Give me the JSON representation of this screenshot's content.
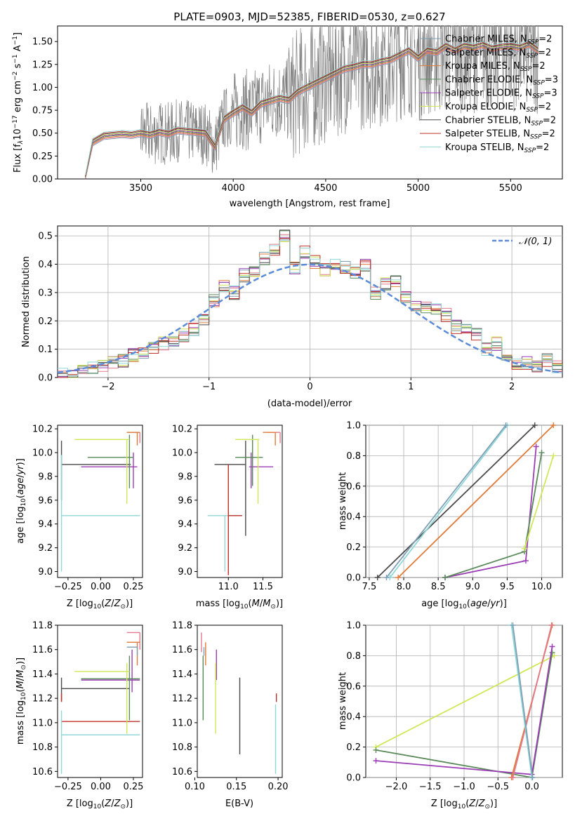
{
  "title": "PLATE=0903, MJD=52385, FIBERID=0530, z=0.627",
  "colors": {
    "chabrier_miles": "#7f9fb5",
    "salpeter_miles": "#e07b8d",
    "kroupa_miles": "#e07b39",
    "chabrier_elodie": "#5a8a5a",
    "salpeter_elodie": "#9b3db5",
    "kroupa_elodie": "#cfe85a",
    "chabrier_stelib": "#4a4a4a",
    "salpeter_stelib": "#c0302a",
    "kroupa_stelib": "#8fd6d6",
    "normal_curve": "#5b8bd9",
    "grid": "#b0b0b0",
    "data": "#808080"
  },
  "legend_labels": {
    "spectrum": [
      "Chabrier MILES, N",
      "Salpeter MILES, N",
      "Kroupa MILES, N",
      "Chabrier ELODIE, N",
      "Salpeter ELODIE, N",
      "Kroupa ELODIE, N",
      "Chabrier STELIB, N",
      "Salpeter STELIB, N",
      "Kroupa STELIB, N"
    ],
    "nssp_values": [
      "=2",
      "=2",
      "=2",
      "=3",
      "=3",
      "=2",
      "=2",
      "=2",
      "=2"
    ],
    "normal": "𝒩(0, 1)"
  },
  "axis_labels": {
    "spec_x": "wavelength [Angstrom, rest frame]",
    "spec_y": "Flux [f",
    "hist_x": "(data-model)/error",
    "hist_y": "Normed distribution",
    "age_y": "age  [log",
    "Z_x": "Z [log",
    "mass_x": "mass [log",
    "mw_y": "mass weight",
    "age_x": "age  [log",
    "mass_y": "mass [log",
    "ebv_x": "E(B-V)"
  },
  "chart_data": [
    {
      "type": "line",
      "title": "PLATE=0903, MJD=52385, FIBERID=0530, z=0.627",
      "xlabel": "wavelength [Angstrom, rest frame]",
      "ylabel": "Flux [f_λ 10^-17 erg cm^-2 s^-1 A^-1]",
      "xlim": [
        3050,
        5780
      ],
      "ylim": [
        0,
        1.67
      ],
      "xticks": [
        3500,
        4000,
        4500,
        5000,
        5500
      ],
      "yticks": [
        0.0,
        0.25,
        0.5,
        0.75,
        1.0,
        1.25,
        1.5
      ],
      "model_continuum": {
        "x": [
          3200,
          3240,
          3300,
          3350,
          3400,
          3450,
          3500,
          3550,
          3600,
          3650,
          3700,
          3750,
          3800,
          3850,
          3900,
          3950,
          4000,
          4050,
          4100,
          4150,
          4200,
          4250,
          4300,
          4350,
          4400,
          4450,
          4500,
          4550,
          4600,
          4650,
          4700,
          4750,
          4800,
          4850,
          4900,
          4950,
          5000,
          5050,
          5100,
          5150,
          5200,
          5250,
          5300,
          5350,
          5400,
          5450,
          5500,
          5550,
          5600,
          5650
        ],
        "y": [
          0.0,
          0.4,
          0.47,
          0.48,
          0.49,
          0.48,
          0.5,
          0.48,
          0.51,
          0.49,
          0.53,
          0.52,
          0.51,
          0.5,
          0.35,
          0.65,
          0.72,
          0.78,
          0.72,
          0.82,
          0.85,
          0.88,
          0.86,
          0.95,
          1.0,
          1.05,
          1.1,
          1.15,
          1.2,
          1.22,
          1.25,
          1.25,
          1.28,
          1.3,
          1.35,
          1.4,
          1.32,
          1.4,
          1.38,
          1.45,
          1.4,
          1.45,
          1.43,
          1.46,
          1.42,
          1.44,
          1.45,
          1.43,
          1.47,
          1.4
        ]
      },
      "legend_position": "top-right"
    },
    {
      "type": "line",
      "xlabel": "(data-model)/error",
      "ylabel": "Normed distribution",
      "xlim": [
        -2.5,
        2.5
      ],
      "ylim": [
        0,
        0.535
      ],
      "xticks": [
        -2,
        -1,
        0,
        1,
        2
      ],
      "yticks": [
        0.0,
        0.1,
        0.2,
        0.3,
        0.4,
        0.5
      ],
      "grid": true,
      "histogram_bins": {
        "x": [
          -2.5,
          -2.4,
          -2.3,
          -2.2,
          -2.1,
          -2.0,
          -1.9,
          -1.8,
          -1.7,
          -1.6,
          -1.5,
          -1.4,
          -1.3,
          -1.2,
          -1.1,
          -1.0,
          -0.9,
          -0.8,
          -0.7,
          -0.6,
          -0.5,
          -0.4,
          -0.3,
          -0.2,
          -0.1,
          0.0,
          0.1,
          0.2,
          0.3,
          0.4,
          0.5,
          0.6,
          0.7,
          0.8,
          0.9,
          1.0,
          1.1,
          1.2,
          1.3,
          1.4,
          1.5,
          1.6,
          1.7,
          1.8,
          1.9,
          2.0,
          2.1,
          2.2,
          2.3,
          2.4
        ],
        "y": [
          0.01,
          0.01,
          0.02,
          0.03,
          0.04,
          0.05,
          0.06,
          0.08,
          0.09,
          0.1,
          0.12,
          0.13,
          0.15,
          0.17,
          0.2,
          0.27,
          0.32,
          0.3,
          0.36,
          0.38,
          0.42,
          0.45,
          0.5,
          0.39,
          0.44,
          0.41,
          0.38,
          0.4,
          0.39,
          0.37,
          0.4,
          0.3,
          0.33,
          0.34,
          0.28,
          0.26,
          0.25,
          0.24,
          0.22,
          0.18,
          0.17,
          0.15,
          0.1,
          0.12,
          0.08,
          0.05,
          0.05,
          0.04,
          0.06,
          0.04
        ]
      },
      "series": [
        {
          "name": "𝒩(0, 1)",
          "mean": 0,
          "sigma": 1
        }
      ],
      "legend_position": "top-right"
    },
    {
      "type": "scatter",
      "xlabel": "Z [log10(Z/Z☉)]",
      "ylabel": "age [log10(age/yr)]",
      "xlim": [
        -0.33,
        0.32
      ],
      "ylim": [
        8.95,
        10.23
      ],
      "xticks": [
        -0.25,
        0.0,
        0.25
      ],
      "yticks": [
        9.0,
        9.2,
        9.4,
        9.6,
        9.8,
        10.0,
        10.2
      ],
      "points": [
        {
          "color": "chabrier_stelib",
          "x": [
            -0.3,
            0.23
          ],
          "y": [
            9.9,
            9.9
          ],
          "vx": -0.3,
          "vy": [
            9.6,
            10.1
          ]
        },
        {
          "color": "kroupa_stelib",
          "x": [
            -0.3,
            0.3
          ],
          "y": [
            9.47,
            9.47
          ],
          "vx": -0.3,
          "vy": [
            9.0,
            9.98
          ]
        },
        {
          "color": "salpeter_elodie",
          "x": [
            -0.15,
            0.28
          ],
          "y": [
            9.88,
            9.88
          ],
          "vx": 0.25,
          "vy": [
            9.7,
            10.0
          ]
        },
        {
          "color": "chabrier_elodie",
          "x": [
            -0.1,
            0.25
          ],
          "y": [
            9.96,
            9.96
          ],
          "vx": 0.22,
          "vy": [
            9.7,
            10.15
          ]
        },
        {
          "color": "kroupa_elodie",
          "x": [
            -0.2,
            0.22
          ],
          "y": [
            10.11,
            10.11
          ],
          "vx": 0.2,
          "vy": [
            9.57,
            10.11
          ]
        },
        {
          "color": "salpeter_miles",
          "x": [
            0.2,
            0.3
          ],
          "y": [
            10.17,
            10.17
          ],
          "vx": 0.3,
          "vy": [
            10.08,
            10.17
          ]
        },
        {
          "color": "kroupa_miles",
          "x": [
            0.2,
            0.3
          ],
          "y": [
            10.17,
            10.17
          ],
          "vx": 0.28,
          "vy": [
            10.06,
            10.17
          ]
        }
      ]
    },
    {
      "type": "scatter",
      "xlabel": "mass [log10(M/M☉)]",
      "xlim": [
        10.55,
        11.78
      ],
      "ylim": [
        8.95,
        10.23
      ],
      "xticks": [
        11.0,
        11.5
      ],
      "yticks": [
        9.0,
        9.2,
        9.4,
        9.6,
        9.8,
        10.0,
        10.2
      ],
      "points": [
        {
          "color": "chabrier_stelib",
          "x": [
            10.8,
            11.25
          ],
          "y": [
            9.9,
            9.9
          ],
          "vx": 11.25,
          "vy": [
            9.3,
            10.1
          ]
        },
        {
          "color": "kroupa_stelib",
          "x": [
            10.7,
            11.2
          ],
          "y": [
            9.47,
            9.47
          ],
          "vx": 10.95,
          "vy": [
            9.0,
            9.47
          ]
        },
        {
          "color": "salpeter_stelib",
          "x": [
            11.0,
            11.2
          ],
          "y": [
            9.47,
            9.47
          ],
          "vx": 11.0,
          "vy": [
            8.97,
            9.9
          ]
        },
        {
          "color": "salpeter_elodie",
          "x": [
            11.3,
            11.65
          ],
          "y": [
            9.88,
            9.88
          ],
          "vx": 11.33,
          "vy": [
            9.7,
            10.0
          ]
        },
        {
          "color": "chabrier_elodie",
          "x": [
            11.1,
            11.5
          ],
          "y": [
            9.96,
            9.96
          ],
          "vx": 11.35,
          "vy": [
            9.72,
            10.15
          ]
        },
        {
          "color": "kroupa_elodie",
          "x": [
            11.1,
            11.45
          ],
          "y": [
            10.11,
            10.11
          ],
          "vx": 11.43,
          "vy": [
            9.57,
            10.11
          ]
        },
        {
          "color": "salpeter_miles",
          "x": [
            11.55,
            11.75
          ],
          "y": [
            10.17,
            10.17
          ],
          "vx": 11.75,
          "vy": [
            10.08,
            10.17
          ]
        },
        {
          "color": "kroupa_miles",
          "x": [
            11.5,
            11.68
          ],
          "y": [
            10.17,
            10.17
          ],
          "vx": 11.68,
          "vy": [
            10.06,
            10.17
          ]
        }
      ]
    },
    {
      "type": "line",
      "xlabel": "age [log10(age/yr)]",
      "ylabel": "mass weight",
      "xlim": [
        7.45,
        10.3
      ],
      "ylim": [
        0,
        1.0
      ],
      "xticks": [
        7.5,
        8.0,
        8.5,
        9.0,
        9.5,
        10.0
      ],
      "yticks": [
        0.0,
        0.2,
        0.4,
        0.6,
        0.8,
        1.0
      ],
      "grid": true,
      "series": [
        {
          "color": "chabrier_stelib",
          "x": [
            7.62,
            9.9
          ],
          "y": [
            0.0,
            1.0
          ]
        },
        {
          "color": "kroupa_stelib",
          "x": [
            7.8,
            9.5
          ],
          "y": [
            0.0,
            1.0
          ]
        },
        {
          "color": "chabrier_miles",
          "x": [
            7.75,
            9.48
          ],
          "y": [
            0.0,
            1.0
          ]
        },
        {
          "color": "kroupa_miles",
          "x": [
            7.92,
            10.17
          ],
          "y": [
            0.0,
            1.0
          ]
        },
        {
          "color": "salpeter_elodie",
          "x": [
            8.6,
            9.77,
            9.92
          ],
          "y": [
            0.0,
            0.11,
            0.86
          ]
        },
        {
          "color": "chabrier_elodie",
          "x": [
            8.6,
            9.75,
            10.0
          ],
          "y": [
            0.0,
            0.17,
            0.82
          ]
        },
        {
          "color": "kroupa_elodie",
          "x": [
            9.75,
            10.17
          ],
          "y": [
            0.19,
            0.8
          ]
        }
      ]
    },
    {
      "type": "scatter",
      "xlabel": "Z [log10(Z/Z☉)]",
      "ylabel": "mass [log10(M/M☉)]",
      "xlim": [
        -0.33,
        0.32
      ],
      "ylim": [
        10.55,
        11.8
      ],
      "xticks": [
        -0.25,
        0.0,
        0.25
      ],
      "yticks": [
        10.6,
        10.8,
        11.0,
        11.2,
        11.4,
        11.6,
        11.8
      ],
      "points": [
        {
          "color": "chabrier_stelib",
          "x": [
            -0.3,
            0.22
          ],
          "y": [
            11.28,
            11.28
          ],
          "vx": -0.3,
          "vy": [
            11.18,
            11.37
          ]
        },
        {
          "color": "salpeter_stelib",
          "x": [
            -0.3,
            0.3
          ],
          "y": [
            11.01,
            11.01
          ],
          "vx": -0.3,
          "vy": [
            11.17,
            11.24
          ]
        },
        {
          "color": "kroupa_stelib",
          "x": [
            -0.3,
            0.3
          ],
          "y": [
            10.9,
            10.9
          ],
          "vx": -0.3,
          "vy": [
            10.58,
            11.1
          ]
        },
        {
          "color": "salpeter_elodie",
          "x": [
            -0.15,
            0.3
          ],
          "y": [
            11.35,
            11.35
          ],
          "vx": 0.24,
          "vy": [
            11.25,
            11.6
          ]
        },
        {
          "color": "chabrier_elodie",
          "x": [
            -0.15,
            0.3
          ],
          "y": [
            11.36,
            11.36
          ],
          "vx": 0.22,
          "vy": [
            11.02,
            11.55
          ]
        },
        {
          "color": "kroupa_elodie",
          "x": [
            -0.2,
            0.22
          ],
          "y": [
            11.42,
            11.42
          ],
          "vx": 0.2,
          "vy": [
            10.91,
            11.49
          ]
        },
        {
          "color": "salpeter_miles",
          "x": [
            0.2,
            0.3
          ],
          "y": [
            11.74,
            11.74
          ],
          "vx": 0.3,
          "vy": [
            11.6,
            11.74
          ]
        },
        {
          "color": "kroupa_miles",
          "x": [
            0.2,
            0.3
          ],
          "y": [
            11.66,
            11.66
          ],
          "vx": 0.28,
          "vy": [
            11.47,
            11.66
          ]
        },
        {
          "color": "chabrier_miles",
          "x": [
            0.2,
            0.28
          ],
          "y": [
            11.62,
            11.62
          ],
          "vx": 0.28,
          "vy": [
            11.55,
            11.62
          ]
        }
      ]
    },
    {
      "type": "scatter",
      "xlabel": "E(B-V)",
      "xlim": [
        0.103,
        0.205
      ],
      "ylim": [
        10.55,
        11.8
      ],
      "xticks": [
        0.1,
        0.15,
        0.2
      ],
      "yticks": [
        10.6,
        10.8,
        11.0,
        11.2,
        11.4,
        11.6,
        11.8
      ],
      "points": [
        {
          "color": "salpeter_miles",
          "vx": 0.108,
          "vy": [
            11.58,
            11.74
          ]
        },
        {
          "color": "kroupa_miles",
          "vx": 0.113,
          "vy": [
            11.47,
            11.66
          ]
        },
        {
          "color": "chabrier_miles",
          "vx": 0.111,
          "vy": [
            11.55,
            11.62
          ]
        },
        {
          "color": "chabrier_elodie",
          "vx": 0.11,
          "vy": [
            11.02,
            11.55
          ]
        },
        {
          "color": "salpeter_elodie",
          "vx": 0.126,
          "vy": [
            11.35,
            11.6
          ]
        },
        {
          "color": "kroupa_elodie",
          "vx": 0.125,
          "vy": [
            10.91,
            11.49
          ]
        },
        {
          "color": "chabrier_stelib",
          "vx": 0.154,
          "vy": [
            10.74,
            11.37
          ]
        },
        {
          "color": "salpeter_stelib",
          "vx": 0.198,
          "vy": [
            11.17,
            11.24
          ]
        },
        {
          "color": "kroupa_stelib",
          "vx": 0.197,
          "vy": [
            10.58,
            11.15
          ]
        }
      ]
    },
    {
      "type": "line",
      "xlabel": "Z [log10(Z/Z☉)]",
      "ylabel": "mass weight",
      "xlim": [
        -2.45,
        0.45
      ],
      "ylim": [
        0,
        1.0
      ],
      "xticks": [
        -2.0,
        -1.5,
        -1.0,
        -0.5,
        0.0
      ],
      "yticks": [
        0.0,
        0.2,
        0.4,
        0.6,
        0.8,
        1.0
      ],
      "grid": true,
      "series": [
        {
          "color": "kroupa_elodie",
          "x": [
            -2.3,
            0.33
          ],
          "y": [
            0.2,
            0.8
          ]
        },
        {
          "color": "chabrier_elodie",
          "x": [
            -2.3,
            0.0,
            0.3
          ],
          "y": [
            0.18,
            0.0,
            0.82
          ]
        },
        {
          "color": "salpeter_elodie",
          "x": [
            -2.3,
            0.0,
            0.3
          ],
          "y": [
            0.11,
            0.02,
            0.86
          ]
        },
        {
          "color": "kroupa_miles",
          "x": [
            -0.3,
            0.3
          ],
          "y": [
            0.0,
            1.0
          ]
        },
        {
          "color": "salpeter_miles",
          "x": [
            -0.28,
            0.29
          ],
          "y": [
            0.0,
            1.0
          ]
        },
        {
          "color": "kroupa_stelib",
          "x": [
            -0.3,
            0.0
          ],
          "y": [
            1.0,
            0.0
          ]
        },
        {
          "color": "chabrier_miles",
          "x": [
            -0.28,
            0.01
          ],
          "y": [
            1.0,
            0.0
          ]
        }
      ]
    }
  ]
}
